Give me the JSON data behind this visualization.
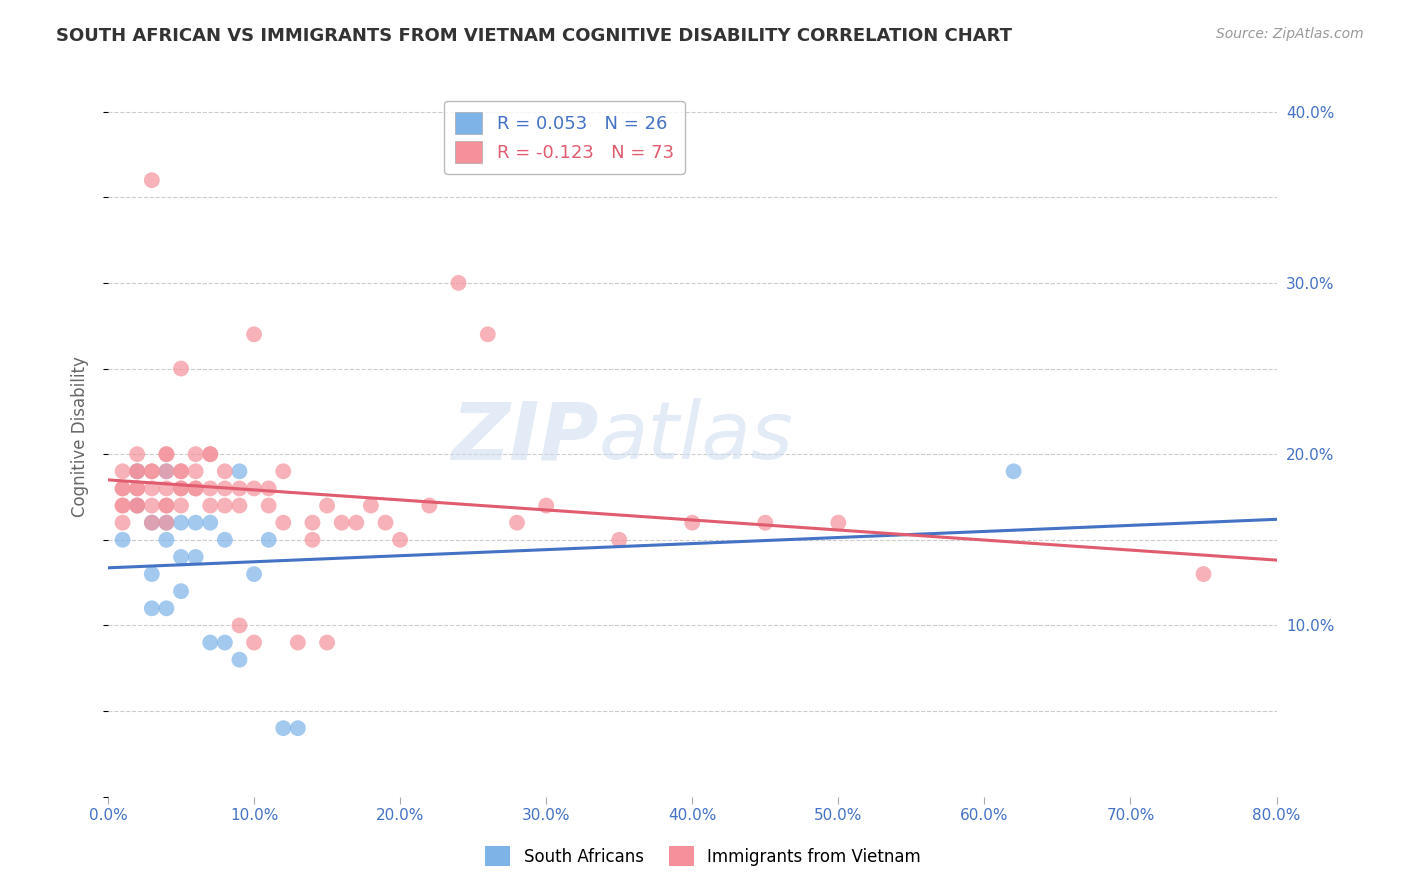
{
  "title": "SOUTH AFRICAN VS IMMIGRANTS FROM VIETNAM COGNITIVE DISABILITY CORRELATION CHART",
  "source": "Source: ZipAtlas.com",
  "ylabel_label": "Cognitive Disability",
  "xlim": [
    0.0,
    0.8
  ],
  "ylim": [
    0.0,
    0.42
  ],
  "yticks_right_values": [
    0.4,
    0.3,
    0.2,
    0.1
  ],
  "xtick_values": [
    0.0,
    0.1,
    0.2,
    0.3,
    0.4,
    0.5,
    0.6,
    0.7,
    0.8
  ],
  "legend_R1": "R = 0.053",
  "legend_N1": "N = 26",
  "legend_R2": "R = -0.123",
  "legend_N2": "N = 73",
  "color_blue": "#7EB3E8",
  "color_pink": "#F4919A",
  "color_line_blue": "#4472C4",
  "color_line_pink": "#E05C6E",
  "color_axis_labels": "#4472C4",
  "watermark_zip": "ZIP",
  "watermark_atlas": "atlas",
  "south_africans_x": [
    0.01,
    0.02,
    0.02,
    0.03,
    0.03,
    0.03,
    0.04,
    0.04,
    0.04,
    0.04,
    0.05,
    0.05,
    0.05,
    0.06,
    0.06,
    0.07,
    0.07,
    0.08,
    0.08,
    0.09,
    0.09,
    0.1,
    0.11,
    0.12,
    0.13,
    0.62
  ],
  "south_africans_y": [
    0.15,
    0.19,
    0.17,
    0.16,
    0.13,
    0.11,
    0.19,
    0.16,
    0.15,
    0.11,
    0.16,
    0.14,
    0.12,
    0.16,
    0.14,
    0.16,
    0.09,
    0.15,
    0.09,
    0.19,
    0.08,
    0.13,
    0.15,
    0.04,
    0.04,
    0.19
  ],
  "vietnam_x": [
    0.01,
    0.01,
    0.01,
    0.01,
    0.01,
    0.01,
    0.02,
    0.02,
    0.02,
    0.02,
    0.02,
    0.02,
    0.02,
    0.03,
    0.03,
    0.03,
    0.03,
    0.03,
    0.03,
    0.04,
    0.04,
    0.04,
    0.04,
    0.04,
    0.04,
    0.04,
    0.05,
    0.05,
    0.05,
    0.05,
    0.05,
    0.05,
    0.06,
    0.06,
    0.06,
    0.06,
    0.07,
    0.07,
    0.07,
    0.07,
    0.08,
    0.08,
    0.08,
    0.09,
    0.09,
    0.09,
    0.1,
    0.1,
    0.1,
    0.11,
    0.11,
    0.12,
    0.12,
    0.13,
    0.14,
    0.14,
    0.15,
    0.15,
    0.16,
    0.17,
    0.18,
    0.19,
    0.2,
    0.22,
    0.24,
    0.26,
    0.28,
    0.3,
    0.35,
    0.4,
    0.45,
    0.5,
    0.75
  ],
  "vietnam_y": [
    0.19,
    0.18,
    0.18,
    0.17,
    0.17,
    0.16,
    0.2,
    0.19,
    0.19,
    0.18,
    0.18,
    0.17,
    0.17,
    0.19,
    0.19,
    0.18,
    0.17,
    0.16,
    0.36,
    0.2,
    0.2,
    0.19,
    0.18,
    0.17,
    0.17,
    0.16,
    0.19,
    0.19,
    0.18,
    0.18,
    0.17,
    0.25,
    0.2,
    0.19,
    0.18,
    0.18,
    0.2,
    0.2,
    0.18,
    0.17,
    0.19,
    0.18,
    0.17,
    0.18,
    0.17,
    0.1,
    0.27,
    0.18,
    0.09,
    0.18,
    0.17,
    0.19,
    0.16,
    0.09,
    0.16,
    0.15,
    0.17,
    0.09,
    0.16,
    0.16,
    0.17,
    0.16,
    0.15,
    0.17,
    0.3,
    0.27,
    0.16,
    0.17,
    0.15,
    0.16,
    0.16,
    0.16,
    0.13
  ],
  "background_color": "#FFFFFF",
  "grid_color": "#CCCCCC",
  "grid_style": "--"
}
